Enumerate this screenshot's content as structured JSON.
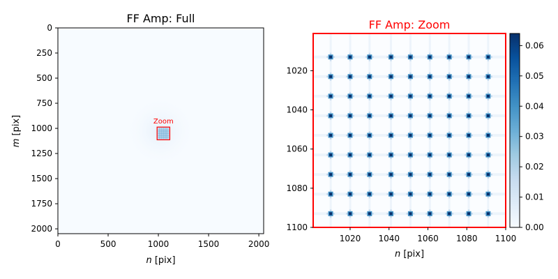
{
  "colors": {
    "accent": "#ff0000",
    "cmap_low": "#f7fbff",
    "cmap_high": "#08306b",
    "axis": "#000000"
  },
  "chart_data": [
    {
      "type": "heatmap",
      "title": "FF Amp: Full",
      "xlabel_italic": "n",
      "xlabel_rest": " [pix]",
      "ylabel_italic": "m",
      "ylabel_rest": " [pix]",
      "xlim": [
        0,
        2048
      ],
      "ylim": [
        2048,
        0
      ],
      "xticks": [
        0,
        500,
        1000,
        1500,
        2000
      ],
      "yticks": [
        0,
        250,
        500,
        750,
        1000,
        1250,
        1500,
        1750,
        2000
      ],
      "zoom_box": {
        "label": "Zoom",
        "x": [
          1001,
          1100
        ],
        "y": [
          1001,
          1100
        ]
      },
      "grid": false
    },
    {
      "type": "heatmap",
      "title": "FF Amp: Zoom",
      "xlabel_italic": "n",
      "xlabel_rest": " [pix]",
      "xlim": [
        1001,
        1100
      ],
      "ylim": [
        1100,
        1001
      ],
      "xticks": [
        1020,
        1040,
        1060,
        1080,
        1100
      ],
      "yticks": [
        1020,
        1040,
        1060,
        1080,
        1100
      ],
      "peaks_x": [
        1010,
        1020,
        1030,
        1041,
        1051,
        1061,
        1071,
        1081,
        1091
      ],
      "peaks_y": [
        1013,
        1023,
        1033,
        1043,
        1053,
        1063,
        1073,
        1083,
        1093
      ],
      "colorbar": {
        "range": [
          0,
          0.064
        ],
        "ticks": [
          "0.00",
          "0.01",
          "0.02",
          "0.03",
          "0.04",
          "0.05",
          "0.06"
        ],
        "tick_values": [
          0,
          0.01,
          0.02,
          0.03,
          0.04,
          0.05,
          0.06
        ]
      },
      "grid": false
    }
  ]
}
